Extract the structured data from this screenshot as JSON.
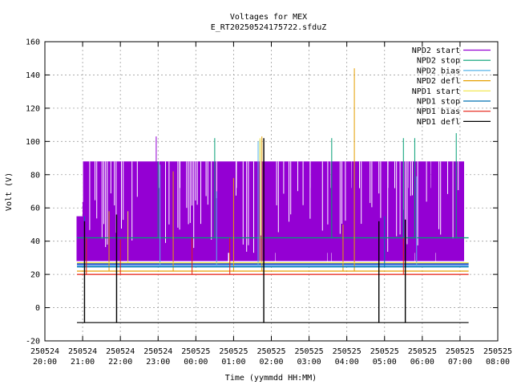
{
  "chart_data": {
    "type": "line",
    "title": "Voltages for MEX",
    "subtitle": "E_RT20250524175722.sfduZ",
    "xlabel": "Time (yymmdd HH:MM)",
    "ylabel": "Volt (V)",
    "ylim": [
      -20,
      160
    ],
    "yticks": [
      -20,
      0,
      20,
      40,
      60,
      80,
      100,
      120,
      140,
      160
    ],
    "xlim_hours": [
      20,
      32
    ],
    "xticks": [
      {
        "hour": 20,
        "date": "250524",
        "time": "20:00"
      },
      {
        "hour": 21,
        "date": "250524",
        "time": "21:00"
      },
      {
        "hour": 22,
        "date": "250524",
        "time": "22:00"
      },
      {
        "hour": 23,
        "date": "250524",
        "time": "23:00"
      },
      {
        "hour": 24,
        "date": "250525",
        "time": "00:00"
      },
      {
        "hour": 25,
        "date": "250525",
        "time": "01:00"
      },
      {
        "hour": 26,
        "date": "250525",
        "time": "02:00"
      },
      {
        "hour": 27,
        "date": "250525",
        "time": "03:00"
      },
      {
        "hour": 28,
        "date": "250525",
        "time": "04:00"
      },
      {
        "hour": 29,
        "date": "250525",
        "time": "05:00"
      },
      {
        "hour": 30,
        "date": "250525",
        "time": "06:00"
      },
      {
        "hour": 31,
        "date": "250525",
        "time": "07:00"
      },
      {
        "hour": 32,
        "date": "250525",
        "time": "08:00"
      }
    ],
    "grid": true,
    "legend_position": "top-right",
    "time_span_hours": [
      20.85,
      31.1
    ],
    "series": [
      {
        "name": "NPD2 start",
        "color": "#9400d3",
        "band_low": 28,
        "band_high": 88,
        "spikes": [
          {
            "hour": 22.95,
            "value": 103
          }
        ]
      },
      {
        "name": "NPD2 stop",
        "color": "#009e73",
        "baseline": 42,
        "spikes": [
          {
            "hour": 23.0,
            "value": 88
          },
          {
            "hour": 24.5,
            "value": 102
          },
          {
            "hour": 25.7,
            "value": 101
          },
          {
            "hour": 27.6,
            "value": 102
          },
          {
            "hour": 29.5,
            "value": 102
          },
          {
            "hour": 29.8,
            "value": 102
          },
          {
            "hour": 30.9,
            "value": 105
          }
        ]
      },
      {
        "name": "NPD2 bias",
        "color": "#56b4e9",
        "baseline": 25,
        "spikes": [
          {
            "hour": 23.05,
            "value": 86
          },
          {
            "hour": 24.55,
            "value": 70
          },
          {
            "hour": 25.65,
            "value": 100
          },
          {
            "hour": 29.85,
            "value": 79
          }
        ]
      },
      {
        "name": "NPD2 defl",
        "color": "#e69f00",
        "baseline": 22,
        "spikes": [
          {
            "hour": 21.7,
            "value": 58
          },
          {
            "hour": 23.4,
            "value": 82
          },
          {
            "hour": 25.0,
            "value": 78
          },
          {
            "hour": 25.75,
            "value": 103
          },
          {
            "hour": 28.2,
            "value": 144
          },
          {
            "hour": 27.9,
            "value": 50
          }
        ]
      },
      {
        "name": "NPD1 start",
        "color": "#f0e442",
        "baseline": 27,
        "spikes": [
          {
            "hour": 22.2,
            "value": 58
          },
          {
            "hour": 25.7,
            "value": 102
          }
        ]
      },
      {
        "name": "NPD1 stop",
        "color": "#0072b2",
        "baseline": 24.5,
        "spikes": [
          {
            "hour": 21.05,
            "value": 55
          },
          {
            "hour": 29.0,
            "value": 55
          }
        ]
      },
      {
        "name": "NPD1 bias",
        "color": "#e51e10",
        "baseline": 20,
        "spikes": [
          {
            "hour": 21.1,
            "value": 42
          },
          {
            "hour": 22.0,
            "value": 41
          },
          {
            "hour": 23.9,
            "value": 42
          },
          {
            "hour": 24.9,
            "value": 42
          },
          {
            "hour": 25.8,
            "value": 101
          },
          {
            "hour": 29.5,
            "value": 42
          }
        ]
      },
      {
        "name": "NPD1 defl",
        "color": "#000000",
        "baseline": -9,
        "spikes": [
          {
            "hour": 21.05,
            "value": 52
          },
          {
            "hour": 21.9,
            "value": 56
          },
          {
            "hour": 25.8,
            "value": 102
          },
          {
            "hour": 28.85,
            "value": 52
          },
          {
            "hour": 29.55,
            "value": 53
          }
        ]
      }
    ]
  }
}
